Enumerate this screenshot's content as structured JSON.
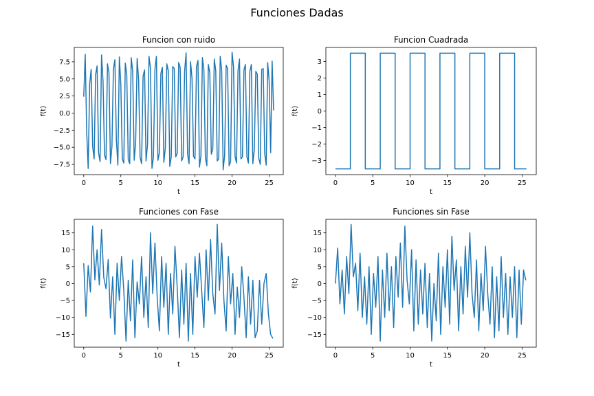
{
  "figure": {
    "title": "Funciones Dadas"
  },
  "colors": {
    "line": "#1f77b4",
    "axes": "#000000",
    "background": "#ffffff"
  },
  "chart_data": [
    {
      "type": "line",
      "title": "Funcion con ruido",
      "xlabel": "t",
      "ylabel": "f(t)",
      "xlim": [
        -1.28,
        26.9
      ],
      "ylim": [
        -9.0,
        9.6
      ],
      "xticks": [
        0,
        5,
        10,
        15,
        20,
        25
      ],
      "xtick_labels": [
        "0",
        "5",
        "10",
        "15",
        "20",
        "25"
      ],
      "yticks": [
        -7.5,
        -5.0,
        -2.5,
        0.0,
        2.5,
        5.0,
        7.5
      ],
      "ytick_labels": [
        "−7.5",
        "−5.0",
        "−2.5",
        "0.0",
        "2.5",
        "5.0",
        "7.5"
      ],
      "grid": false,
      "series": [
        {
          "x": [
            0,
            0.2,
            0.4,
            0.6,
            0.8,
            1.0,
            1.2,
            1.4,
            1.6,
            1.8,
            2.0,
            2.2,
            2.4,
            2.6,
            2.8,
            3.0,
            3.2,
            3.4,
            3.6,
            3.8,
            4.0,
            4.2,
            4.4,
            4.6,
            4.8,
            5.0,
            5.2,
            5.4,
            5.6,
            5.8,
            6.0,
            6.2,
            6.4,
            6.6,
            6.8,
            7.0,
            7.2,
            7.4,
            7.6,
            7.8,
            8.0,
            8.2,
            8.4,
            8.6,
            8.8,
            9.0,
            9.2,
            9.4,
            9.6,
            9.8,
            10.0,
            10.2,
            10.4,
            10.6,
            10.8,
            11.0,
            11.2,
            11.4,
            11.6,
            11.8,
            12.0,
            12.2,
            12.4,
            12.6,
            12.8,
            13.0,
            13.2,
            13.4,
            13.6,
            13.8,
            14.0,
            14.2,
            14.4,
            14.6,
            14.8,
            15.0,
            15.2,
            15.4,
            15.6,
            15.8,
            16.0,
            16.2,
            16.4,
            16.6,
            16.8,
            17.0,
            17.2,
            17.4,
            17.6,
            17.8,
            18.0,
            18.2,
            18.4,
            18.6,
            18.8,
            19.0,
            19.2,
            19.4,
            19.6,
            19.8,
            20.0,
            20.2,
            20.4,
            20.6,
            20.8,
            21.0,
            21.2,
            21.4,
            21.6,
            21.8,
            22.0,
            22.2,
            22.4,
            22.6,
            22.8,
            23.0,
            23.2,
            23.4,
            23.6,
            23.8,
            24.0,
            24.2,
            24.4,
            24.6,
            24.8,
            25.0,
            25.2,
            25.4,
            25.6
          ],
          "y": [
            2.4,
            8.6,
            -2.8,
            -8.1,
            4.3,
            6.4,
            -4.9,
            -6.7,
            5.6,
            6.9,
            -5.8,
            -7.1,
            8.5,
            4.7,
            -6.1,
            -6.8,
            7.2,
            5.9,
            -7.4,
            -4.9,
            6.4,
            7.8,
            -3.9,
            -7.6,
            8.2,
            4.2,
            -6.7,
            -7.3,
            7.3,
            5.6,
            -6.8,
            -7.4,
            8.1,
            6.1,
            -6.9,
            -4.3,
            8.0,
            4.8,
            -6.5,
            -7.4,
            5.4,
            6.3,
            -7.0,
            -4.6,
            8.3,
            6.5,
            -8.1,
            -6.4,
            6.4,
            8.3,
            -6.9,
            -5.8,
            5.8,
            6.7,
            -7.2,
            -5.1,
            7.2,
            6.2,
            -7.8,
            -6.4,
            6.8,
            6.5,
            -6.4,
            -5.9,
            7.4,
            6.7,
            -7.0,
            -6.4,
            6.1,
            8.8,
            -6.0,
            -7.4,
            7.5,
            5.1,
            -6.3,
            -6.7,
            6.8,
            7.7,
            -7.9,
            -6.3,
            8.1,
            6.4,
            -6.5,
            -7.7,
            7.1,
            5.9,
            -6.0,
            -5.3,
            7.9,
            6.2,
            -7.0,
            -6.7,
            8.3,
            6.3,
            -8.3,
            -6.1,
            7.0,
            6.5,
            -7.7,
            -7.1,
            8.9,
            6.7,
            -6.3,
            -7.3,
            6.2,
            7.9,
            -6.7,
            -6.4,
            6.3,
            7.1,
            -6.4,
            -7.3,
            6.1,
            7.1,
            -7.4,
            -5.3,
            6.1,
            5.7,
            -6.6,
            -7.5,
            6.4,
            6.5,
            -5.9,
            -7.6,
            7.4,
            4.7,
            -5.8,
            7.6,
            0.4
          ]
        }
      ]
    },
    {
      "type": "line",
      "title": "Funcion Cuadrada",
      "xlabel": "t",
      "ylabel": "f(t)",
      "xlim": [
        -1.28,
        26.9
      ],
      "ylim": [
        -3.85,
        3.85
      ],
      "xticks": [
        0,
        5,
        10,
        15,
        20,
        25
      ],
      "xtick_labels": [
        "0",
        "5",
        "10",
        "15",
        "20",
        "25"
      ],
      "yticks": [
        -3,
        -2,
        -1,
        0,
        1,
        2,
        3
      ],
      "ytick_labels": [
        "−3",
        "−2",
        "−1",
        "0",
        "1",
        "2",
        "3"
      ],
      "grid": false,
      "series": [
        {
          "x": [
            0,
            2,
            2,
            4,
            4,
            6,
            6,
            8,
            8,
            10,
            10,
            12,
            12,
            14,
            14,
            16,
            16,
            18,
            18,
            20,
            20,
            22,
            22,
            24,
            24,
            25.6
          ],
          "y": [
            -3.5,
            -3.5,
            3.5,
            3.5,
            -3.5,
            -3.5,
            3.5,
            3.5,
            -3.5,
            -3.5,
            3.5,
            3.5,
            -3.5,
            -3.5,
            3.5,
            3.5,
            -3.5,
            -3.5,
            3.5,
            3.5,
            -3.5,
            -3.5,
            3.5,
            3.5,
            -3.5,
            -3.5
          ]
        }
      ]
    },
    {
      "type": "line",
      "title": "Funciones con Fase",
      "xlabel": "t",
      "ylabel": "f(t)",
      "xlim": [
        -1.28,
        26.9
      ],
      "ylim": [
        -18.8,
        19.0
      ],
      "xticks": [
        0,
        5,
        10,
        15,
        20,
        25
      ],
      "xtick_labels": [
        "0",
        "5",
        "10",
        "15",
        "20",
        "25"
      ],
      "yticks": [
        -15,
        -10,
        -5,
        0,
        5,
        10,
        15
      ],
      "ytick_labels": [
        "−15",
        "−10",
        "−5",
        "0",
        "5",
        "10",
        "15"
      ],
      "grid": false,
      "series": [
        {
          "x": [
            0,
            0.3,
            0.6,
            0.9,
            1.2,
            1.5,
            1.8,
            2.1,
            2.4,
            2.7,
            3.0,
            3.3,
            3.6,
            3.9,
            4.2,
            4.5,
            4.8,
            5.1,
            5.4,
            5.7,
            6.0,
            6.3,
            6.6,
            6.9,
            7.2,
            7.5,
            7.8,
            8.1,
            8.4,
            8.7,
            9.0,
            9.3,
            9.6,
            9.9,
            10.2,
            10.5,
            10.8,
            11.1,
            11.4,
            11.7,
            12.0,
            12.3,
            12.6,
            12.9,
            13.2,
            13.5,
            13.8,
            14.1,
            14.4,
            14.7,
            15.0,
            15.3,
            15.6,
            15.9,
            16.2,
            16.5,
            16.8,
            17.1,
            17.4,
            17.7,
            18.0,
            18.3,
            18.6,
            18.9,
            19.2,
            19.5,
            19.8,
            20.1,
            20.4,
            20.7,
            21.0,
            21.3,
            21.6,
            21.9,
            22.2,
            22.5,
            22.8,
            23.1,
            23.4,
            23.7,
            24.0,
            24.3,
            24.6,
            24.9,
            25.2,
            25.5
          ],
          "y": [
            6,
            -9.7,
            5.3,
            -2.5,
            17,
            1.1,
            10,
            -0.4,
            16,
            1.8,
            -1.5,
            7.1,
            -10.2,
            2,
            -15,
            6,
            -5,
            8,
            -2,
            -17,
            1,
            -11,
            7,
            -16,
            0.5,
            -6,
            8,
            -10,
            2,
            -13,
            15,
            -3,
            12,
            -4,
            -14,
            8,
            -7,
            6,
            -15,
            3,
            -9,
            11,
            -1,
            -16,
            4,
            -12,
            6,
            -17,
            3,
            -15,
            8,
            -4,
            9,
            -2,
            -13,
            10,
            -5,
            13,
            -3,
            -9,
            17.5,
            -2,
            12,
            -5,
            -14,
            8,
            -6,
            3,
            -15,
            -1,
            -10,
            5,
            -4,
            -16,
            2,
            -12,
            1,
            -16,
            -14,
            1,
            -12,
            0,
            3,
            -9,
            -15,
            -16.2
          ]
        }
      ]
    },
    {
      "type": "line",
      "title": "Funciones sin Fase",
      "xlabel": "t",
      "ylabel": "f(t)",
      "xlim": [
        -1.28,
        26.9
      ],
      "ylim": [
        -18.8,
        19.0
      ],
      "xticks": [
        0,
        5,
        10,
        15,
        20,
        25
      ],
      "xtick_labels": [
        "0",
        "5",
        "10",
        "15",
        "20",
        "25"
      ],
      "yticks": [
        -15,
        -10,
        -5,
        0,
        5,
        10,
        15
      ],
      "ytick_labels": [
        "−15",
        "−10",
        "−5",
        "0",
        "5",
        "10",
        "15"
      ],
      "grid": false,
      "series": [
        {
          "x": [
            0,
            0.3,
            0.6,
            0.9,
            1.2,
            1.5,
            1.8,
            2.1,
            2.4,
            2.7,
            3.0,
            3.3,
            3.6,
            3.9,
            4.2,
            4.5,
            4.8,
            5.1,
            5.4,
            5.7,
            6.0,
            6.3,
            6.6,
            6.9,
            7.2,
            7.5,
            7.8,
            8.1,
            8.4,
            8.7,
            9.0,
            9.3,
            9.6,
            9.9,
            10.2,
            10.5,
            10.8,
            11.1,
            11.4,
            11.7,
            12.0,
            12.3,
            12.6,
            12.9,
            13.2,
            13.5,
            13.8,
            14.1,
            14.4,
            14.7,
            15.0,
            15.3,
            15.6,
            15.9,
            16.2,
            16.5,
            16.8,
            17.1,
            17.4,
            17.7,
            18.0,
            18.3,
            18.6,
            18.9,
            19.2,
            19.5,
            19.8,
            20.1,
            20.4,
            20.7,
            21.0,
            21.3,
            21.6,
            21.9,
            22.2,
            22.5,
            22.8,
            23.1,
            23.4,
            23.7,
            24.0,
            24.3,
            24.6,
            24.9,
            25.2,
            25.5
          ],
          "y": [
            0,
            10.5,
            -6,
            4,
            -9,
            8,
            -3,
            17.5,
            2,
            6,
            -8,
            9,
            -10,
            2,
            -12,
            5,
            -15,
            3,
            -7,
            8,
            -17,
            4,
            -10,
            9,
            -8,
            5,
            -13,
            8,
            -4,
            12,
            -7,
            17,
            1,
            -6,
            10,
            -14,
            7,
            -12,
            4,
            -9,
            6,
            -13,
            3,
            -17,
            0,
            -11,
            9,
            -15,
            5,
            -7,
            10,
            -12,
            14,
            -2,
            7,
            -14,
            5,
            -9,
            11,
            -4,
            15,
            -3,
            -10,
            7,
            -14,
            3,
            -8,
            11,
            -3,
            -12,
            5,
            -16,
            2,
            -14,
            8,
            -10,
            3,
            -15,
            2,
            -10,
            5,
            -16,
            4,
            -12,
            4,
            1
          ]
        }
      ]
    }
  ]
}
